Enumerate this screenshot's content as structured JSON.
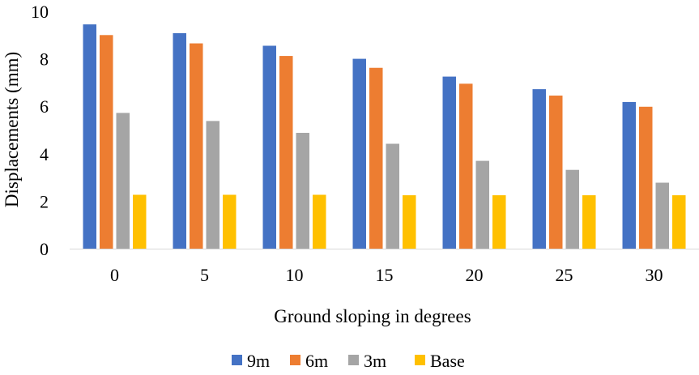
{
  "chart_data": {
    "type": "bar",
    "xlabel": "Ground sloping in degrees",
    "ylabel": "Displacements (mm)",
    "categories": [
      "0",
      "5",
      "10",
      "15",
      "20",
      "25",
      "30"
    ],
    "ylim": [
      0,
      10
    ],
    "yticks": [
      "0",
      "2",
      "4",
      "6",
      "8",
      "10"
    ],
    "grid": false,
    "legend_position": "bottom",
    "series": [
      {
        "name": "9m",
        "color": "#4472C4",
        "values": [
          9.45,
          9.08,
          8.55,
          8.0,
          7.25,
          6.72,
          6.18
        ]
      },
      {
        "name": "6m",
        "color": "#ED7D31",
        "values": [
          9.0,
          8.65,
          8.12,
          7.62,
          6.95,
          6.45,
          5.98
        ]
      },
      {
        "name": "3m",
        "color": "#A5A5A5",
        "values": [
          5.72,
          5.38,
          4.88,
          4.42,
          3.7,
          3.32,
          2.78
        ]
      },
      {
        "name": "Base",
        "color": "#FFC000",
        "values": [
          2.27,
          2.27,
          2.27,
          2.25,
          2.25,
          2.25,
          2.25
        ]
      }
    ]
  }
}
